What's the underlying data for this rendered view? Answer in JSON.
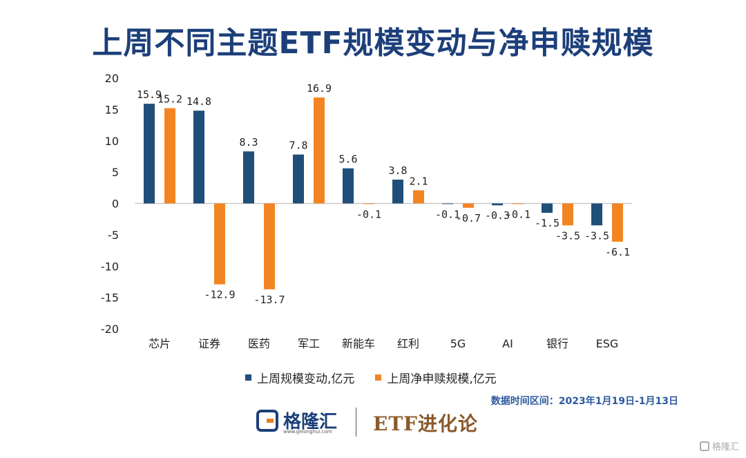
{
  "title": "上周不同主题ETF规模变动与净申赎规模",
  "chart_data": {
    "type": "bar",
    "categories": [
      "芯片",
      "证券",
      "医药",
      "军工",
      "新能车",
      "红利",
      "5G",
      "AI",
      "银行",
      "ESG"
    ],
    "series": [
      {
        "name": "上周规模变动,亿元",
        "values": [
          15.9,
          14.8,
          8.3,
          7.8,
          5.6,
          3.8,
          -0.1,
          -0.3,
          -1.5,
          -3.5
        ],
        "labels": [
          "15.9",
          "14.8",
          "8.3",
          "7.8",
          "5.6",
          "3.8",
          "-0.1",
          "-0.3",
          "-1.5",
          "-3.5"
        ]
      },
      {
        "name": "上周净申赎规模,亿元",
        "values": [
          15.2,
          -12.9,
          -13.7,
          16.9,
          -0.1,
          2.1,
          -0.7,
          -0.1,
          -3.5,
          -6.1
        ],
        "labels": [
          "15.2",
          "-12.9",
          "-13.7",
          "16.9",
          "-0.1",
          "2.1",
          "-0.7",
          "-0.1",
          "-3.5",
          "-6.1"
        ]
      }
    ],
    "ylim": [
      -20,
      20
    ],
    "yticks": [
      20,
      15,
      10,
      5,
      0,
      -5,
      -10,
      -15,
      -20
    ],
    "grid": false,
    "legend": "bottom",
    "colors": [
      "#1f4e79",
      "#f28522"
    ]
  },
  "note": "数据时间区间：2023年1月19日-1月13日",
  "footer": {
    "logo_name": "格隆汇",
    "logo_url": "www.gelonghui.com",
    "brand2": "ETF进化论"
  },
  "watermark": "格隆汇"
}
